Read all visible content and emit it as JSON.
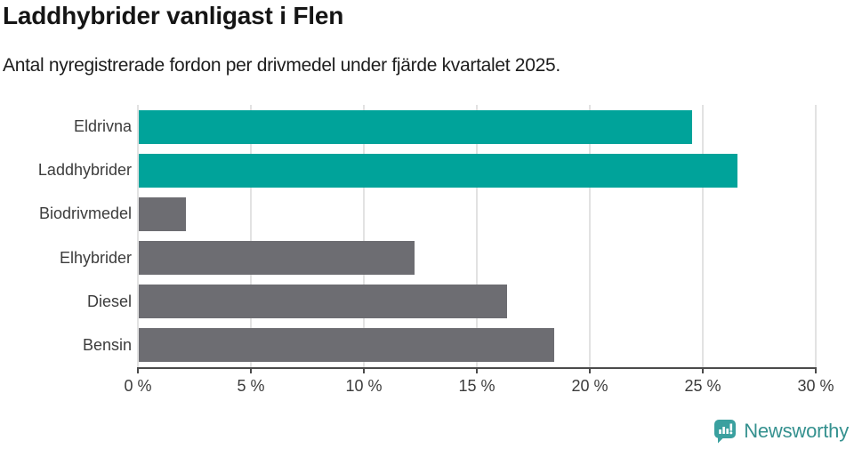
{
  "title": "Laddhybrider vanligast i Flen",
  "subtitle": "Antal nyregistrerade fordon per drivmedel under fjärde kvartalet 2025.",
  "chart_data": {
    "type": "bar",
    "orientation": "horizontal",
    "title": "Laddhybrider vanligast i Flen",
    "subtitle": "Antal nyregistrerade fordon per drivmedel under fjärde kvartalet 2025.",
    "categories": [
      "Eldrivna",
      "Laddhybrider",
      "Biodrivmedel",
      "Elhybrider",
      "Diesel",
      "Bensin"
    ],
    "values": [
      24.5,
      26.5,
      2.1,
      12.2,
      16.3,
      18.4
    ],
    "unit": "%",
    "bar_colors": [
      "#00a39a",
      "#00a39a",
      "#6d6d72",
      "#6d6d72",
      "#6d6d72",
      "#6d6d72"
    ],
    "highlight_color": "#00a39a",
    "default_color": "#6d6d72",
    "xlabel": "",
    "ylabel": "",
    "xlim": [
      0,
      30
    ],
    "x_ticks": [
      0,
      5,
      10,
      15,
      20,
      25,
      30
    ],
    "x_tick_labels": [
      "0 %",
      "5 %",
      "10 %",
      "15 %",
      "20 %",
      "25 %",
      "30 %"
    ],
    "grid": "vertical",
    "gridline_color": "#e2e2e2",
    "axis_color": "#4b4b4b",
    "legend": "none"
  },
  "footer": {
    "brand": "Newsworthy",
    "brand_color": "#35918f",
    "icon_color": "#3aa09f"
  }
}
